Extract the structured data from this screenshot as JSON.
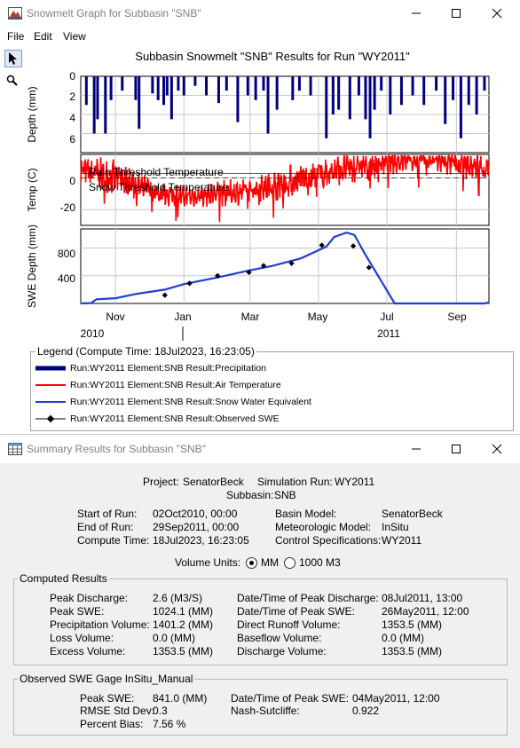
{
  "graph_window": {
    "title": "Snowmelt Graph for Subbasin \"SNB\"",
    "menu": [
      "File",
      "Edit",
      "View"
    ],
    "chart_title": "Subbasin Snowmelt \"SNB\" Results for Run \"WY2011\"",
    "tools": [
      "pointer-tool",
      "zoom-tool"
    ]
  },
  "chart_data": [
    {
      "type": "bar",
      "ylabel": "Depth (mm)",
      "yticks": [
        "0",
        "2",
        "4",
        "6"
      ],
      "ylim": [
        8,
        0
      ],
      "inverted": true,
      "series": [
        {
          "name": "Run:WY2011 Element:SNB Result:Precipitation",
          "color": "#00007f"
        }
      ],
      "events": [
        {
          "date": "2010-10-06",
          "value": 3.0
        },
        {
          "date": "2010-10-13",
          "value": 6.0
        },
        {
          "date": "2010-10-16",
          "value": 4.5
        },
        {
          "date": "2010-10-23",
          "value": 6.0
        },
        {
          "date": "2010-10-28",
          "value": 2.5
        },
        {
          "date": "2010-11-07",
          "value": 1.5
        },
        {
          "date": "2010-11-19",
          "value": 2.5
        },
        {
          "date": "2010-11-22",
          "value": 5.5
        },
        {
          "date": "2010-12-04",
          "value": 1.8
        },
        {
          "date": "2010-12-09",
          "value": 2.5
        },
        {
          "date": "2010-12-14",
          "value": 3.0
        },
        {
          "date": "2010-12-17",
          "value": 2.0
        },
        {
          "date": "2010-12-21",
          "value": 4.5
        },
        {
          "date": "2010-12-27",
          "value": 1.5
        },
        {
          "date": "2011-01-01",
          "value": 2.0
        },
        {
          "date": "2011-01-11",
          "value": 1.0
        },
        {
          "date": "2011-01-21",
          "value": 2.0
        },
        {
          "date": "2011-02-01",
          "value": 2.8
        },
        {
          "date": "2011-02-08",
          "value": 1.5
        },
        {
          "date": "2011-02-18",
          "value": 4.8
        },
        {
          "date": "2011-02-27",
          "value": 2.0
        },
        {
          "date": "2011-03-06",
          "value": 2.5
        },
        {
          "date": "2011-03-13",
          "value": 1.5
        },
        {
          "date": "2011-03-17",
          "value": 6.0
        },
        {
          "date": "2011-03-25",
          "value": 3.5
        },
        {
          "date": "2011-04-08",
          "value": 2.5
        },
        {
          "date": "2011-04-14",
          "value": 1.5
        },
        {
          "date": "2011-04-24",
          "value": 2.0
        },
        {
          "date": "2011-05-08",
          "value": 6.5
        },
        {
          "date": "2011-05-14",
          "value": 4.0
        },
        {
          "date": "2011-05-19",
          "value": 3.5
        },
        {
          "date": "2011-05-29",
          "value": 4.5
        },
        {
          "date": "2011-06-06",
          "value": 2.0
        },
        {
          "date": "2011-06-12",
          "value": 4.5
        },
        {
          "date": "2011-06-16",
          "value": 6.5
        },
        {
          "date": "2011-06-20",
          "value": 3.5
        },
        {
          "date": "2011-06-26",
          "value": 1.5
        },
        {
          "date": "2011-07-04",
          "value": 4.0
        },
        {
          "date": "2011-07-14",
          "value": 3.0
        },
        {
          "date": "2011-07-24",
          "value": 2.0
        },
        {
          "date": "2011-08-03",
          "value": 3.0
        },
        {
          "date": "2011-08-14",
          "value": 1.5
        },
        {
          "date": "2011-08-22",
          "value": 5.0
        },
        {
          "date": "2011-08-29",
          "value": 2.5
        },
        {
          "date": "2011-09-05",
          "value": 6.5
        },
        {
          "date": "2011-09-12",
          "value": 3.0
        },
        {
          "date": "2011-09-19",
          "value": 4.0
        },
        {
          "date": "2011-09-26",
          "value": 1.5
        }
      ]
    },
    {
      "type": "line",
      "ylabel": "Temp (C)",
      "yticks": [
        "0",
        "-20"
      ],
      "ylim": [
        -30,
        15
      ],
      "series": [
        {
          "name": "Run:WY2011 Element:SNB Result:Air Temperature",
          "color": "#ff0000"
        }
      ],
      "smooth_trend": [
        {
          "date": "2010-10-01",
          "value": 5
        },
        {
          "date": "2010-11-01",
          "value": 0
        },
        {
          "date": "2010-12-01",
          "value": -8
        },
        {
          "date": "2011-01-01",
          "value": -12
        },
        {
          "date": "2011-02-01",
          "value": -10
        },
        {
          "date": "2011-03-01",
          "value": -8
        },
        {
          "date": "2011-04-01",
          "value": -3
        },
        {
          "date": "2011-05-01",
          "value": 2
        },
        {
          "date": "2011-06-01",
          "value": 7
        },
        {
          "date": "2011-07-01",
          "value": 10
        },
        {
          "date": "2011-08-01",
          "value": 12
        },
        {
          "date": "2011-09-01",
          "value": 9
        },
        {
          "date": "2011-09-30",
          "value": 6
        }
      ],
      "threshold_lines": [
        {
          "label": "Rain Threshold Temperature",
          "value": 3
        },
        {
          "label": "Snow Threshold Temperature",
          "value": 0
        }
      ]
    },
    {
      "type": "line",
      "ylabel": "SWE Depth (mm)",
      "yticks": [
        "800",
        "400"
      ],
      "ylim": [
        0,
        1000
      ],
      "series": [
        {
          "name": "Run:WY2011 Element:SNB Result:Snow Water Equivalent",
          "color": "#1f3fd0",
          "points": [
            {
              "date": "2010-10-01",
              "value": 0
            },
            {
              "date": "2010-10-10",
              "value": 5
            },
            {
              "date": "2010-10-15",
              "value": 60
            },
            {
              "date": "2010-11-01",
              "value": 75
            },
            {
              "date": "2010-11-20",
              "value": 140
            },
            {
              "date": "2010-12-15",
              "value": 200
            },
            {
              "date": "2011-01-01",
              "value": 280
            },
            {
              "date": "2011-02-01",
              "value": 380
            },
            {
              "date": "2011-03-01",
              "value": 480
            },
            {
              "date": "2011-03-20",
              "value": 540
            },
            {
              "date": "2011-04-15",
              "value": 650
            },
            {
              "date": "2011-05-08",
              "value": 820
            },
            {
              "date": "2011-05-15",
              "value": 960
            },
            {
              "date": "2011-05-26",
              "value": 1024
            },
            {
              "date": "2011-06-02",
              "value": 990
            },
            {
              "date": "2011-06-12",
              "value": 700
            },
            {
              "date": "2011-06-25",
              "value": 350
            },
            {
              "date": "2011-07-08",
              "value": 0
            },
            {
              "date": "2011-09-26",
              "value": 0
            },
            {
              "date": "2011-09-30",
              "value": 15
            }
          ]
        },
        {
          "name": "Run:WY2011 Element:SNB Result:Observed SWE",
          "color": "#000000",
          "points": [
            {
              "date": "2010-12-15",
              "value": 120
            },
            {
              "date": "2011-01-06",
              "value": 290
            },
            {
              "date": "2011-01-31",
              "value": 400
            },
            {
              "date": "2011-02-28",
              "value": 450
            },
            {
              "date": "2011-03-13",
              "value": 545
            },
            {
              "date": "2011-04-07",
              "value": 580
            },
            {
              "date": "2011-05-04",
              "value": 841
            },
            {
              "date": "2011-06-01",
              "value": 830
            },
            {
              "date": "2011-06-15",
              "value": 520
            }
          ]
        }
      ]
    }
  ],
  "x_axis": {
    "months": [
      "Nov",
      "Jan",
      "Mar",
      "May",
      "Jul",
      "Sep"
    ],
    "years": [
      "2010",
      "2011"
    ],
    "range": [
      "2010-10-01",
      "2011-09-30"
    ]
  },
  "legend": {
    "title": "Legend (Compute Time: 18Jul2023, 16:23:05)",
    "items": [
      "Run:WY2011 Element:SNB Result:Precipitation",
      "Run:WY2011 Element:SNB Result:Air Temperature",
      "Run:WY2011 Element:SNB Result:Snow Water Equivalent",
      "Run:WY2011 Element:SNB Result:Observed SWE"
    ]
  },
  "summary_window": {
    "title": "Summary Results for Subbasin \"SNB\"",
    "project_label": "Project:",
    "project": "SenatorBeck",
    "sim_label": "Simulation Run:",
    "sim": "WY2011",
    "subbasin_label": "Subbasin:",
    "subbasin": "SNB",
    "info": {
      "start_label": "Start of Run:",
      "start": "02Oct2010, 00:00",
      "end_label": "End of Run:",
      "end": "29Sep2011, 00:00",
      "compute_label": "Compute Time:",
      "compute": "18Jul2023, 16:23:05",
      "basin_label": "Basin Model:",
      "basin": "SenatorBeck",
      "met_label": "Meteorologic Model:",
      "met": "InSitu",
      "control_label": "Control Specifications:",
      "control": "WY2011"
    },
    "volume_units_label": "Volume Units:",
    "units_mm": "MM",
    "units_1000m3": "1000 M3",
    "computed": {
      "title": "Computed Results",
      "peak_discharge_label": "Peak Discharge:",
      "peak_discharge": "2.6 (M3/S)",
      "peak_swe_label": "Peak SWE:",
      "peak_swe": "1024.1 (MM)",
      "precip_label": "Precipitation Volume:",
      "precip": "1401.2 (MM)",
      "loss_label": "Loss Volume:",
      "loss": "0.0 (MM)",
      "excess_label": "Excess Volume:",
      "excess": "1353.5 (MM)",
      "dt_peak_discharge_label": "Date/Time of Peak Discharge:",
      "dt_peak_discharge": "08Jul2011, 13:00",
      "dt_peak_swe_label": "Date/Time of Peak SWE:",
      "dt_peak_swe": "26May2011, 12:00",
      "direct_runoff_label": "Direct Runoff Volume:",
      "direct_runoff": "1353.5 (MM)",
      "baseflow_label": "Baseflow Volume:",
      "baseflow": "0.0 (MM)",
      "discharge_vol_label": "Discharge Volume:",
      "discharge_vol": "1353.5 (MM)"
    },
    "observed": {
      "title": "Observed SWE Gage InSitu_Manual",
      "peak_swe_label": "Peak SWE:",
      "peak_swe": "841.0 (MM)",
      "rmse_label": "RMSE Std Dev:",
      "rmse": "0.3",
      "bias_label": "Percent Bias:",
      "bias": "7.56 %",
      "dt_peak_swe_label": "Date/Time of Peak SWE:",
      "dt_peak_swe": "04May2011, 12:00",
      "nash_label": "Nash-Sutcliffe:",
      "nash": "0.922"
    }
  }
}
